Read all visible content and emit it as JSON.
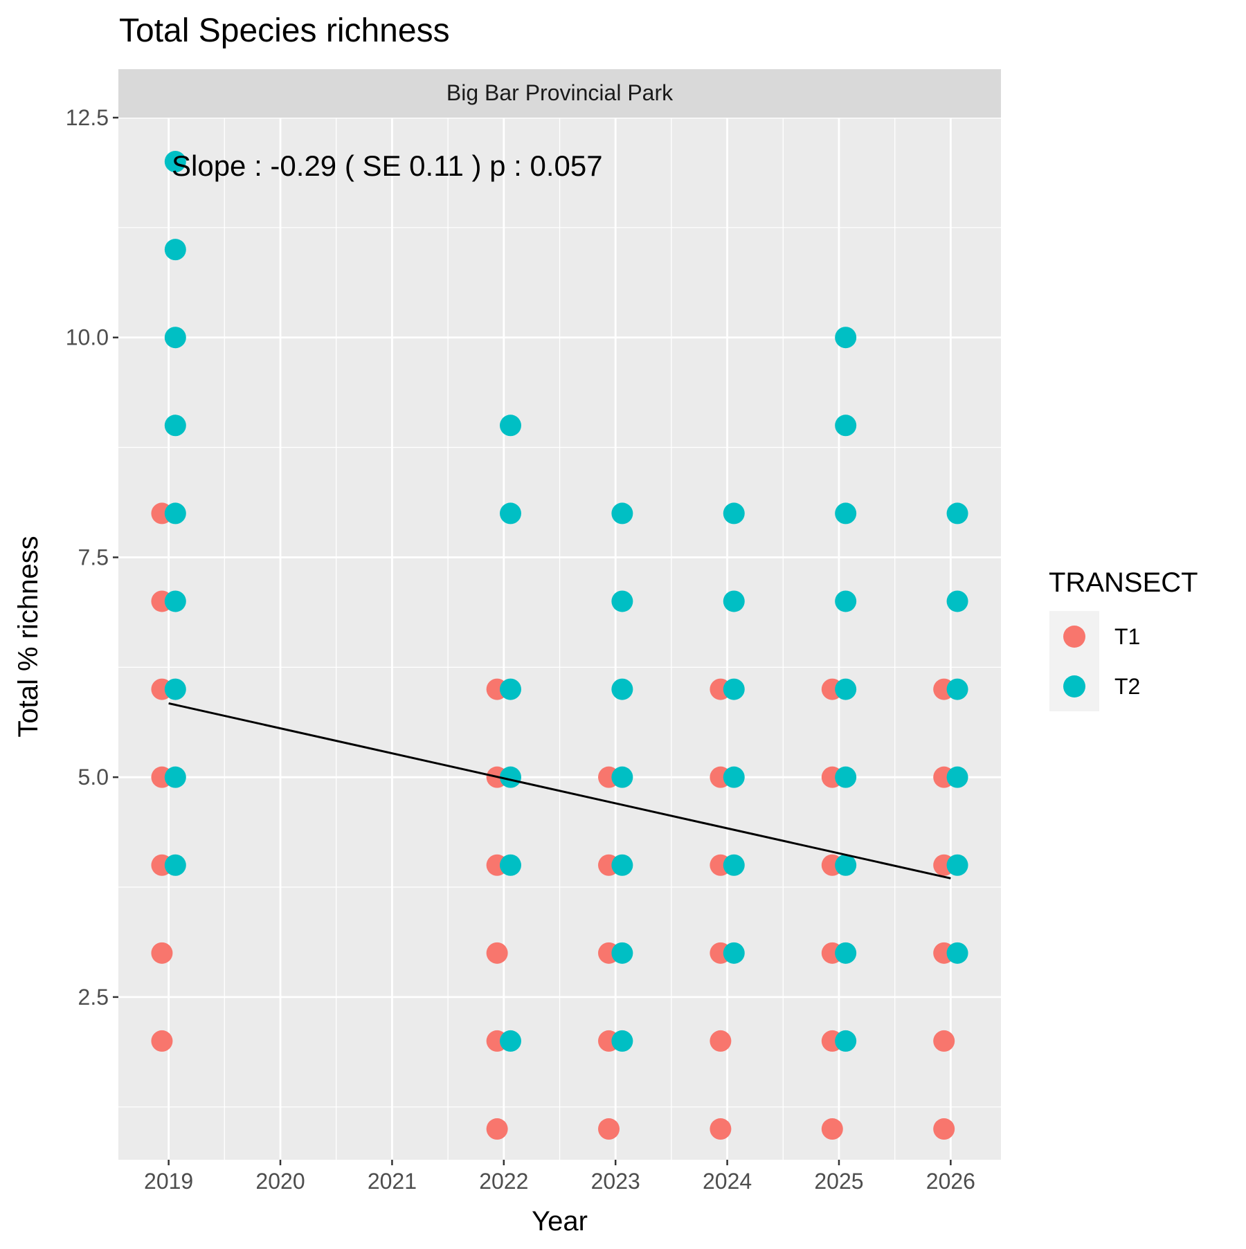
{
  "chart_data": {
    "type": "scatter",
    "title": "Total Species richness",
    "facet_label": "Big Bar Provincial Park",
    "xlabel": "Year",
    "ylabel": "Total % richness",
    "x_ticks": [
      "2019",
      "2020",
      "2021",
      "2022",
      "2023",
      "2024",
      "2025",
      "2026"
    ],
    "y_ticks": [
      "2.5",
      "5.0",
      "7.5",
      "10.0",
      "12.5"
    ],
    "xlim": [
      2018.55,
      2026.45
    ],
    "ylim": [
      0.65,
      12.5
    ],
    "grid": true,
    "legend": {
      "title": "TRANSECT",
      "placement": "right"
    },
    "annotation": "Slope :  -0.29  ( SE  0.11 )  p : 0.057",
    "trend_line": {
      "x": [
        2019,
        2026
      ],
      "y": [
        5.84,
        3.85
      ]
    },
    "series": [
      {
        "name": "T1",
        "color": "#F8766D",
        "points": [
          [
            2019,
            2
          ],
          [
            2019,
            3
          ],
          [
            2019,
            4
          ],
          [
            2019,
            5
          ],
          [
            2019,
            6
          ],
          [
            2019,
            7
          ],
          [
            2019,
            8
          ],
          [
            2022,
            1
          ],
          [
            2022,
            2
          ],
          [
            2022,
            3
          ],
          [
            2022,
            4
          ],
          [
            2022,
            5
          ],
          [
            2022,
            6
          ],
          [
            2023,
            1
          ],
          [
            2023,
            2
          ],
          [
            2023,
            3
          ],
          [
            2023,
            4
          ],
          [
            2023,
            5
          ],
          [
            2024,
            1
          ],
          [
            2024,
            2
          ],
          [
            2024,
            3
          ],
          [
            2024,
            4
          ],
          [
            2024,
            5
          ],
          [
            2024,
            6
          ],
          [
            2025,
            1
          ],
          [
            2025,
            2
          ],
          [
            2025,
            3
          ],
          [
            2025,
            4
          ],
          [
            2025,
            5
          ],
          [
            2025,
            6
          ],
          [
            2026,
            1
          ],
          [
            2026,
            2
          ],
          [
            2026,
            3
          ],
          [
            2026,
            4
          ],
          [
            2026,
            5
          ],
          [
            2026,
            6
          ]
        ]
      },
      {
        "name": "T2",
        "color": "#00BFC4",
        "points": [
          [
            2019,
            4
          ],
          [
            2019,
            5
          ],
          [
            2019,
            6
          ],
          [
            2019,
            7
          ],
          [
            2019,
            8
          ],
          [
            2019,
            9
          ],
          [
            2019,
            10
          ],
          [
            2019,
            11
          ],
          [
            2019,
            12
          ],
          [
            2022,
            2
          ],
          [
            2022,
            4
          ],
          [
            2022,
            5
          ],
          [
            2022,
            6
          ],
          [
            2022,
            8
          ],
          [
            2022,
            9
          ],
          [
            2023,
            2
          ],
          [
            2023,
            3
          ],
          [
            2023,
            4
          ],
          [
            2023,
            5
          ],
          [
            2023,
            6
          ],
          [
            2023,
            7
          ],
          [
            2023,
            8
          ],
          [
            2024,
            3
          ],
          [
            2024,
            4
          ],
          [
            2024,
            5
          ],
          [
            2024,
            6
          ],
          [
            2024,
            7
          ],
          [
            2024,
            8
          ],
          [
            2025,
            2
          ],
          [
            2025,
            3
          ],
          [
            2025,
            4
          ],
          [
            2025,
            5
          ],
          [
            2025,
            6
          ],
          [
            2025,
            7
          ],
          [
            2025,
            8
          ],
          [
            2025,
            9
          ],
          [
            2025,
            10
          ],
          [
            2026,
            3
          ],
          [
            2026,
            4
          ],
          [
            2026,
            5
          ],
          [
            2026,
            6
          ],
          [
            2026,
            7
          ],
          [
            2026,
            8
          ]
        ]
      }
    ],
    "colors": {
      "panel_background": "#EBEBEB",
      "grid_major": "#FFFFFF",
      "strip_background": "#D9D9D9",
      "legend_key_background": "#F2F2F2",
      "trend_line": "#000000"
    }
  }
}
